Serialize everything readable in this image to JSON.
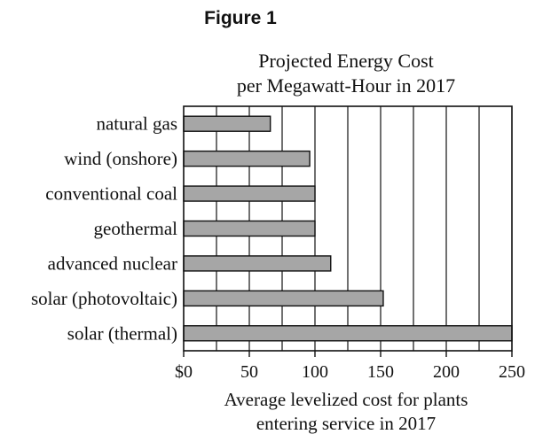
{
  "figure_label": "Figure 1",
  "chart_data": {
    "type": "bar",
    "orientation": "horizontal",
    "title_lines": [
      "Projected Energy Cost",
      "per Megawatt-Hour in 2017"
    ],
    "categories": [
      "natural gas",
      "wind (onshore)",
      "conventional coal",
      "geothermal",
      "advanced nuclear",
      "solar (photovoltaic)",
      "solar (thermal)"
    ],
    "values": [
      66,
      96,
      100,
      100,
      112,
      152,
      251
    ],
    "xlim": [
      0,
      250
    ],
    "x_ticks": [
      0,
      50,
      100,
      150,
      200,
      250
    ],
    "x_tick_labels": [
      "$0",
      "50",
      "100",
      "150",
      "200",
      "250"
    ],
    "x_gridlines": [
      25,
      50,
      75,
      100,
      125,
      150,
      175,
      200,
      225
    ],
    "xlabel_lines": [
      "Average levelized cost for plants",
      "entering service in 2017"
    ],
    "grid": true,
    "bar_color": "#a6a6a6",
    "bar_edge_color": "#111111",
    "axis_color": "#111111"
  }
}
